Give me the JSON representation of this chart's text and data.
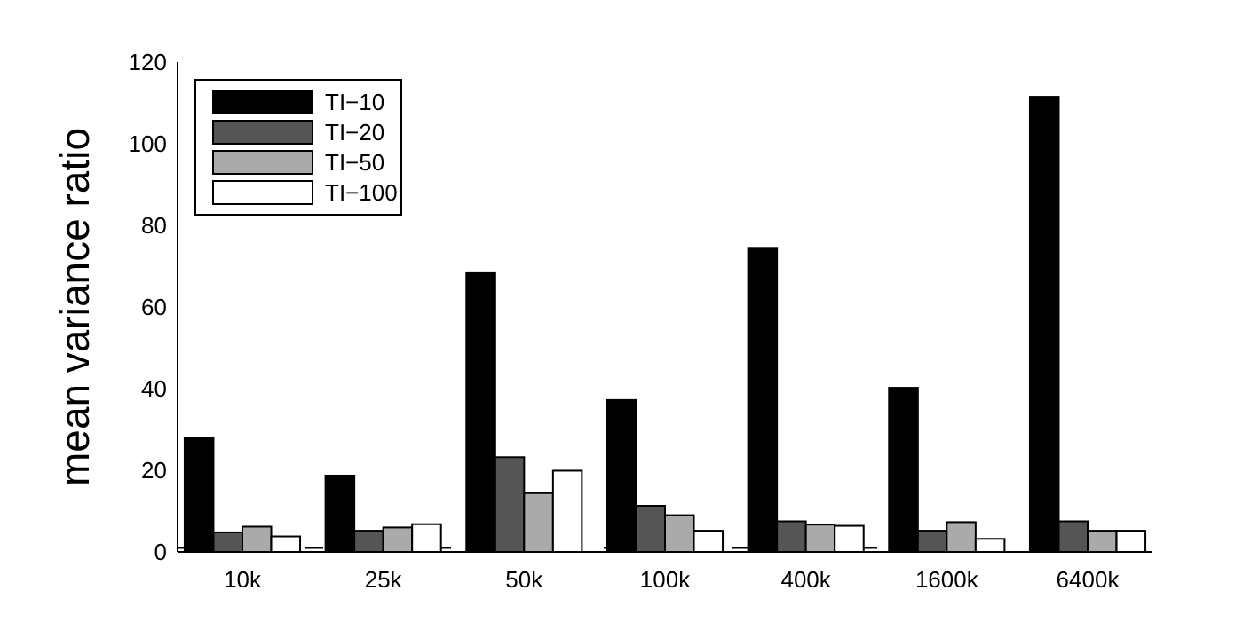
{
  "chart_data": {
    "type": "bar",
    "ylabel": "mean variance ratio",
    "categories": [
      "10k",
      "25k",
      "50k",
      "100k",
      "400k",
      "1600k",
      "6400k"
    ],
    "series": [
      {
        "name": "TI−10",
        "color": "#000000",
        "values": [
          27.9,
          18.7,
          68.5,
          37.2,
          74.5,
          40.2,
          111.5
        ]
      },
      {
        "name": "TI−20",
        "color": "#555555",
        "values": [
          4.8,
          5.2,
          23.2,
          11.3,
          7.5,
          5.2,
          7.5
        ]
      },
      {
        "name": "TI−50",
        "color": "#aaaaaa",
        "values": [
          6.2,
          6.0,
          14.4,
          9.0,
          6.7,
          7.3,
          5.2
        ]
      },
      {
        "name": "TI−100",
        "color": "#ffffff",
        "values": [
          3.8,
          6.8,
          19.9,
          5.2,
          6.4,
          3.2,
          5.2
        ]
      }
    ],
    "ylim": [
      0,
      120
    ],
    "yticks": [
      0,
      20,
      40,
      60,
      80,
      100,
      120
    ],
    "grid": false,
    "legend": "top left",
    "ref_lines": [
      {
        "axis": "y",
        "value": 1,
        "color": "#000000",
        "line_style": "dashed"
      }
    ]
  }
}
